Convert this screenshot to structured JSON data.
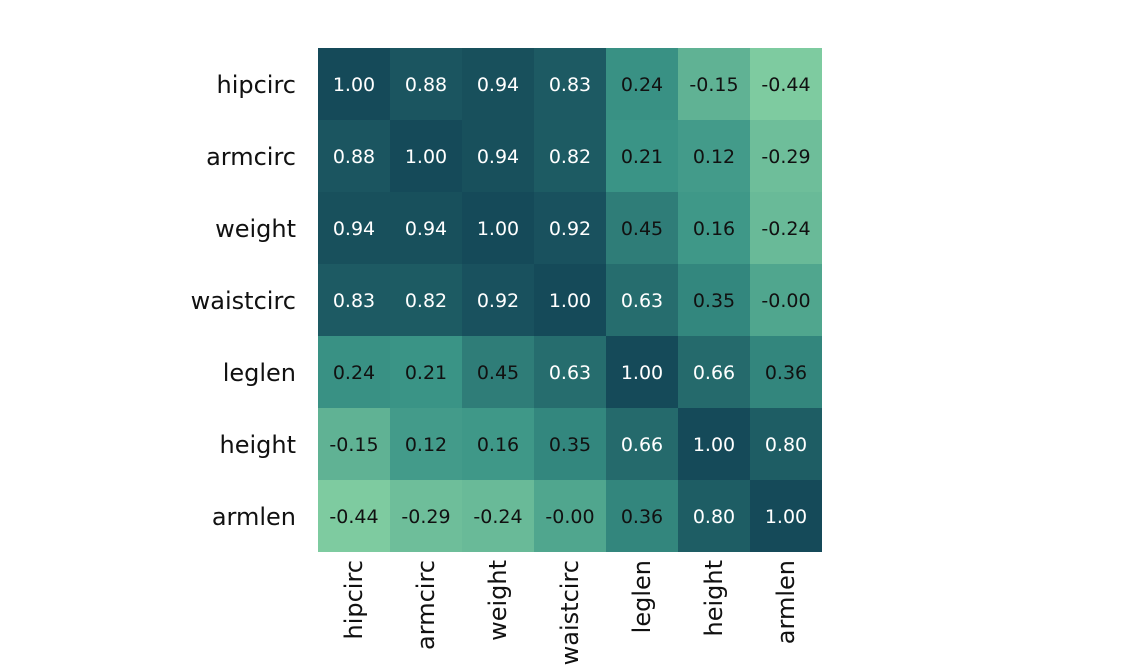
{
  "chart_data": {
    "type": "heatmap",
    "title": "",
    "xlabel": "",
    "ylabel": "",
    "rows": [
      "hipcirc",
      "armcirc",
      "weight",
      "waistcirc",
      "leglen",
      "height",
      "armlen"
    ],
    "columns": [
      "hipcirc",
      "armcirc",
      "weight",
      "waistcirc",
      "leglen",
      "height",
      "armlen"
    ],
    "values": [
      [
        1.0,
        0.88,
        0.94,
        0.83,
        0.24,
        -0.15,
        -0.44
      ],
      [
        0.88,
        1.0,
        0.94,
        0.82,
        0.21,
        0.12,
        -0.29
      ],
      [
        0.94,
        0.94,
        1.0,
        0.92,
        0.45,
        0.16,
        -0.24
      ],
      [
        0.83,
        0.82,
        0.92,
        1.0,
        0.63,
        0.35,
        -0.0
      ],
      [
        0.24,
        0.21,
        0.45,
        0.63,
        1.0,
        0.66,
        0.36
      ],
      [
        -0.15,
        0.12,
        0.16,
        0.35,
        0.66,
        1.0,
        0.8
      ],
      [
        -0.44,
        -0.29,
        -0.24,
        -0.0,
        0.36,
        0.8,
        1.0
      ]
    ],
    "labels": [
      [
        "1.00",
        "0.88",
        "0.94",
        "0.83",
        "0.24",
        "-0.15",
        "-0.44"
      ],
      [
        "0.88",
        "1.00",
        "0.94",
        "0.82",
        "0.21",
        "0.12",
        "-0.29"
      ],
      [
        "0.94",
        "0.94",
        "1.00",
        "0.92",
        "0.45",
        "0.16",
        "-0.24"
      ],
      [
        "0.83",
        "0.82",
        "0.92",
        "1.00",
        "0.63",
        "0.35",
        "-0.00"
      ],
      [
        "0.24",
        "0.21",
        "0.45",
        "0.63",
        "1.00",
        "0.66",
        "0.36"
      ],
      [
        "-0.15",
        "0.12",
        "0.16",
        "0.35",
        "0.66",
        "1.00",
        "0.80"
      ],
      [
        "-0.44",
        "-0.29",
        "-0.24",
        "-0.00",
        "0.36",
        "0.80",
        "1.00"
      ]
    ],
    "color_range": [
      -0.44,
      1.0
    ],
    "colors": {
      "low": "#7ecba0",
      "mid": "#3a9486",
      "high": "#154a59",
      "text_dark": "#111111",
      "text_light": "#ffffff"
    },
    "legend": "none",
    "grid": false
  }
}
